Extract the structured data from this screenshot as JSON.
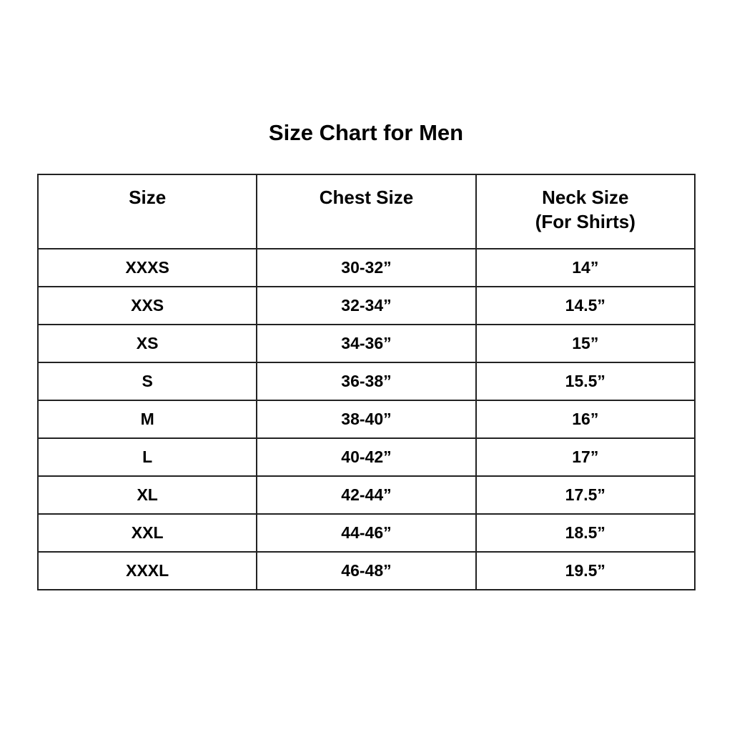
{
  "title": "Size Chart for Men",
  "headers": [
    "Size",
    "Chest Size",
    "Neck Size",
    "(For Shirts)"
  ],
  "rows": [
    {
      "size": "XXXS",
      "chest": "30-32”",
      "neck": "14”"
    },
    {
      "size": "XXS",
      "chest": "32-34”",
      "neck": "14.5”"
    },
    {
      "size": "XS",
      "chest": "34-36”",
      "neck": "15”"
    },
    {
      "size": "S",
      "chest": "36-38”",
      "neck": "15.5”"
    },
    {
      "size": "M",
      "chest": "38-40”",
      "neck": "16”"
    },
    {
      "size": "L",
      "chest": "40-42”",
      "neck": "17”"
    },
    {
      "size": "XL",
      "chest": "42-44”",
      "neck": "17.5”"
    },
    {
      "size": "XXL",
      "chest": "44-46”",
      "neck": "18.5”"
    },
    {
      "size": "XXXL",
      "chest": "46-48”",
      "neck": "19.5”"
    }
  ]
}
